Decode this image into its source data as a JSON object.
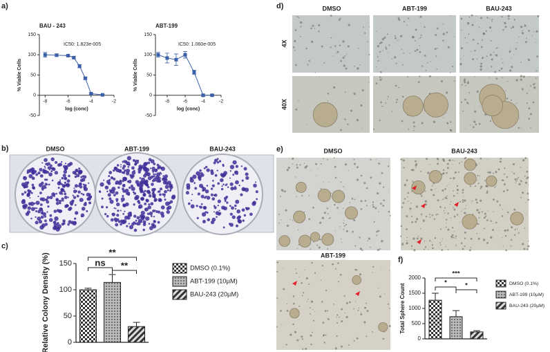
{
  "panel_labels": [
    "a)",
    "b)",
    "c)",
    "d)",
    "e)",
    "f)"
  ],
  "images": {
    "b": [
      "DMSO",
      "ABT-199",
      "BAU-243"
    ],
    "d": {
      "columns": [
        "DMSO",
        "ABT-199",
        "BAU-243"
      ],
      "rows": [
        "4X",
        "40X"
      ]
    },
    "e": [
      "DMSO",
      "BAU-243",
      "ABT-199"
    ]
  },
  "chart_data": [
    {
      "type": "line",
      "title": "BAU - 243",
      "annotation": "IC50: 1.823e-005",
      "xlabel": "log (conc)",
      "ylabel": "% Viable Cells",
      "x": [
        -8,
        -7,
        -6,
        -5.5,
        -5,
        -4.5,
        -4,
        -3
      ],
      "values": [
        100,
        99,
        98,
        93,
        72,
        42,
        4,
        1
      ],
      "errors": [
        6,
        3,
        2,
        3,
        4,
        3,
        2,
        1
      ],
      "color": "#3b5fa8",
      "xlim": [
        -8.5,
        -2
      ],
      "ylim": [
        -50,
        150
      ],
      "xticks": [
        -8,
        -6,
        -4,
        -2
      ],
      "yticks": [
        -50,
        0,
        50,
        100,
        150
      ]
    },
    {
      "type": "line",
      "title": "ABT-199",
      "annotation": "IC50: 1.060e-005",
      "xlabel": "log (conc)",
      "ylabel": "% Viable Cells",
      "x": [
        -9,
        -8,
        -7,
        -6,
        -5,
        -4,
        -3
      ],
      "values": [
        100,
        92,
        88,
        100,
        57,
        0,
        0
      ],
      "errors": [
        6,
        12,
        14,
        8,
        5,
        3,
        2
      ],
      "color": "#3b5fa8",
      "xlim": [
        -9.3,
        -2
      ],
      "ylim": [
        -50,
        150
      ],
      "xticks": [
        -8,
        -6,
        -4,
        -2
      ],
      "yticks": [
        -50,
        0,
        50,
        100,
        150
      ]
    },
    {
      "type": "bar",
      "ylabel": "Relative Colony Density (%)",
      "categories": [
        "DMSO (0.1%)",
        "ABT-199 (10µM)",
        "BAU-243 (20µM)"
      ],
      "values": [
        100,
        114,
        30
      ],
      "errors": [
        3,
        15,
        8
      ],
      "significance": [
        "**",
        "ns",
        "**"
      ],
      "ylim": [
        0,
        150
      ],
      "yticks": [
        0,
        50,
        100,
        150
      ]
    },
    {
      "type": "bar",
      "ylabel": "Total Sphere Count",
      "categories": [
        "DMSO (0.1%)",
        "ABT-199 (10µM)",
        "BAU-243 (20µM)"
      ],
      "values": [
        1270,
        730,
        230
      ],
      "errors": [
        230,
        200,
        40
      ],
      "significance": [
        "***",
        "*",
        "*"
      ],
      "ylim": [
        0,
        2000
      ],
      "yticks": [
        0,
        500,
        1000,
        1500,
        2000
      ]
    }
  ]
}
